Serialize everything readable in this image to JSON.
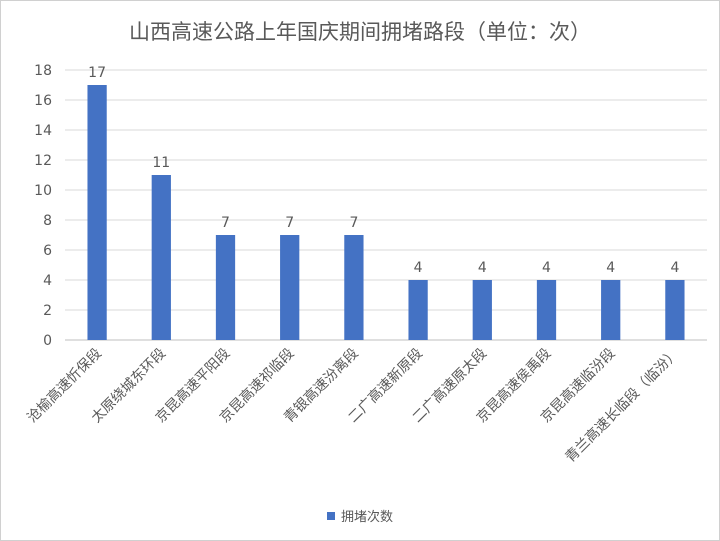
{
  "chart_data": {
    "type": "bar",
    "title": "山西高速公路上年国庆期间拥堵路段（单位：次）",
    "categories": [
      "沧榆高速忻保段",
      "太原绕城东环段",
      "京昆高速平阳段",
      "京昆高速祁临段",
      "青银高速汾离段",
      "二广高速新原段",
      "二广高速原太段",
      "京昆高速侯禹段",
      "京昆高速临汾段",
      "青兰高速长临段（临汾）"
    ],
    "series": [
      {
        "name": "拥堵次数",
        "values": [
          17,
          11,
          7,
          7,
          7,
          4,
          4,
          4,
          4,
          4
        ],
        "color": "#4472c4"
      }
    ],
    "y_ticks": [
      "0",
      "2",
      "4",
      "6",
      "8",
      "10",
      "12",
      "14",
      "16",
      "18"
    ],
    "ylim": [
      0,
      18
    ],
    "grid": true,
    "legend": "bottom"
  }
}
